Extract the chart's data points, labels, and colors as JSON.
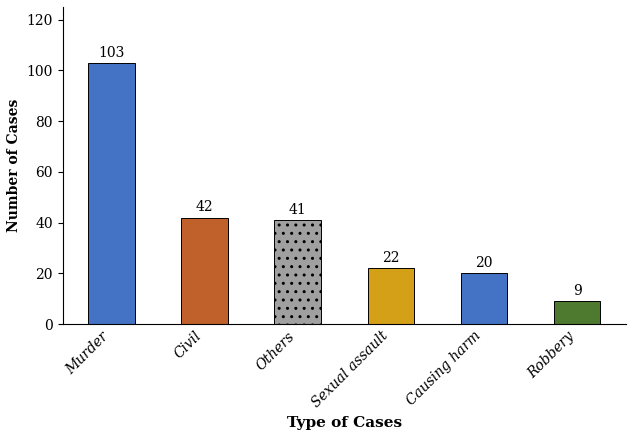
{
  "categories": [
    "Murder",
    "Civil",
    "Others",
    "Sexual assault",
    "Causing harm",
    "Robbery"
  ],
  "values": [
    103,
    42,
    41,
    22,
    20,
    9
  ],
  "bar_colors": [
    "#4472C4",
    "#C0612B",
    "#A0A0A0",
    "#D4A017",
    "#4472C4",
    "#4E7A30"
  ],
  "bar_hatches": [
    "",
    "",
    "..",
    "",
    "",
    ""
  ],
  "ylabel": "Number of Cases",
  "xlabel": "Type of Cases",
  "ylim": [
    0,
    125
  ],
  "yticks": [
    0,
    20,
    40,
    60,
    80,
    100,
    120
  ],
  "value_fontsize": 10,
  "xlabel_fontsize": 11,
  "ylabel_fontsize": 10,
  "tick_fontsize": 10,
  "background_color": "#ffffff",
  "bar_width": 0.5
}
